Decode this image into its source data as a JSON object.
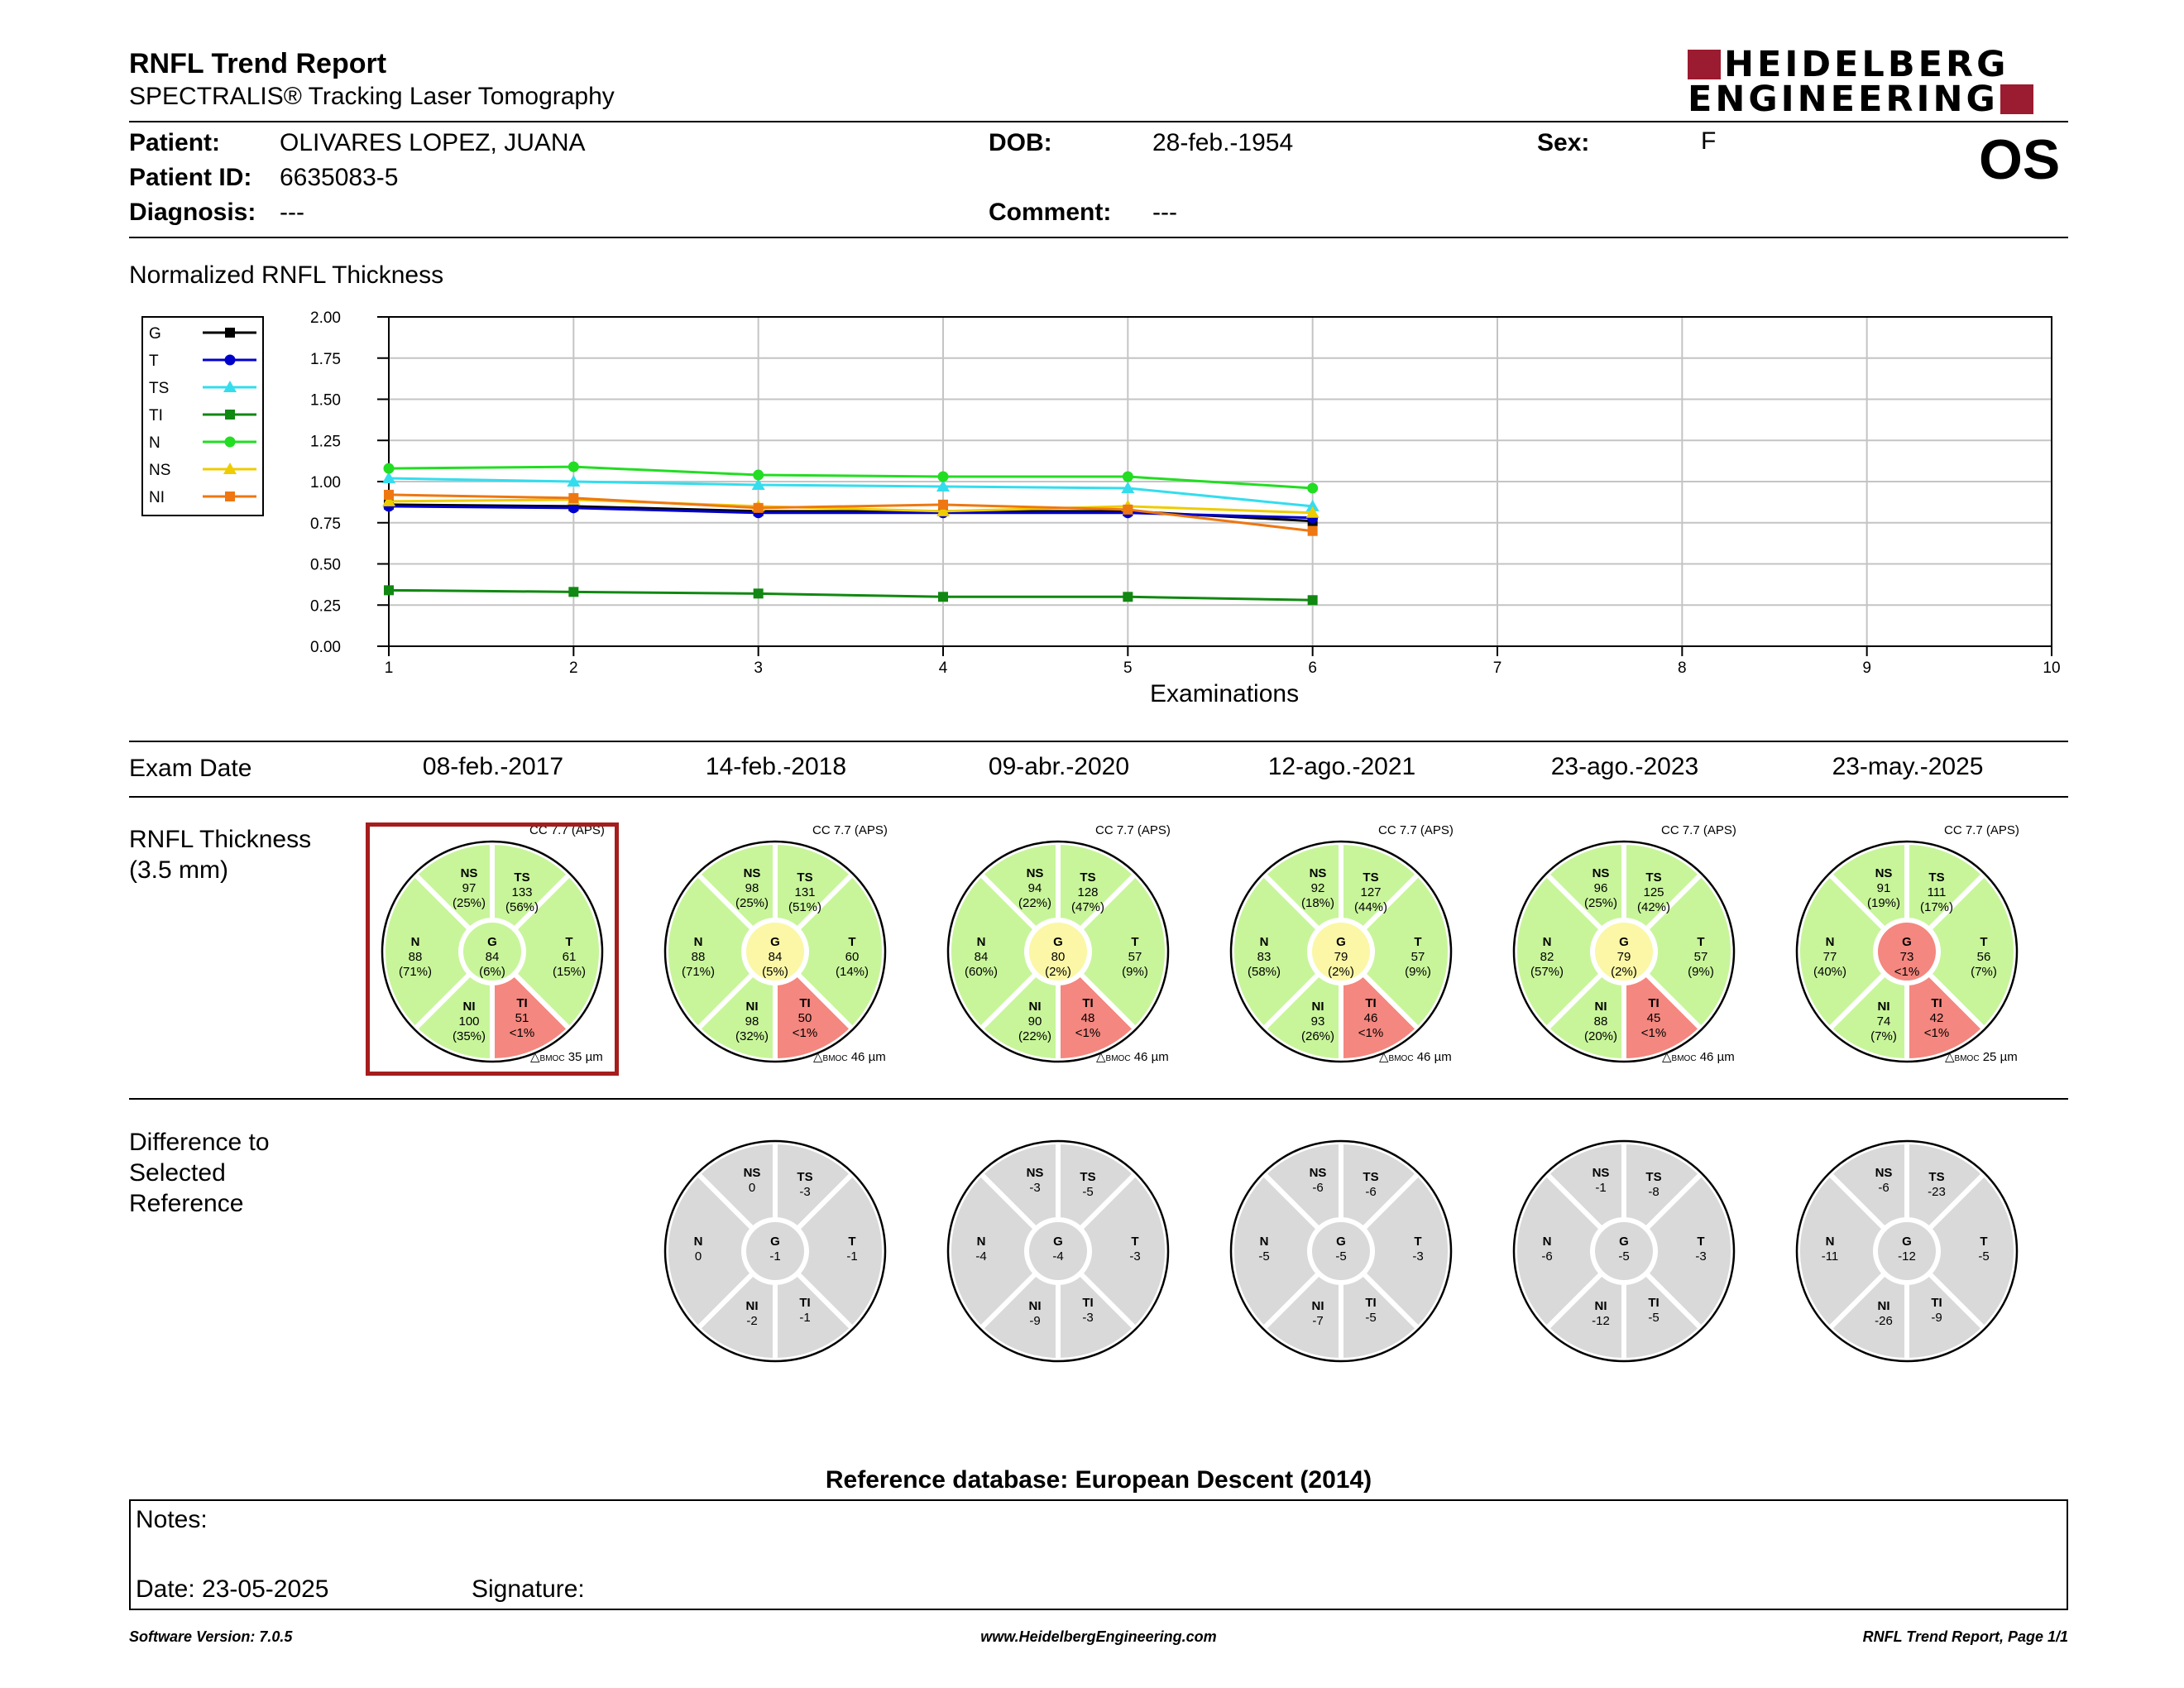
{
  "report": {
    "title": "RNFL Trend Report",
    "subtitle": "SPECTRALIS® Tracking Laser Tomography",
    "logo_line1": "HEIDELBERG",
    "logo_line2": "ENGINEERING",
    "eye": "OS"
  },
  "patient": {
    "name_label": "Patient:",
    "name": "OLIVARES LOPEZ, JUANA",
    "id_label": "Patient ID:",
    "id": "6635083-5",
    "diagnosis_label": "Diagnosis:",
    "diagnosis": "---",
    "dob_label": "DOB:",
    "dob": "28-feb.-1954",
    "comment_label": "Comment:",
    "comment": "---",
    "sex_label": "Sex:",
    "sex": "F"
  },
  "chart_data": {
    "type": "line",
    "title": "Normalized RNFL Thickness",
    "xlabel": "Examinations",
    "ylabel": "",
    "xlim": [
      1,
      10
    ],
    "ylim": [
      0,
      2
    ],
    "x_ticks": [
      "1",
      "2",
      "3",
      "4",
      "5",
      "6",
      "7",
      "8",
      "9",
      "10"
    ],
    "y_ticks": [
      "0.00",
      "0.25",
      "0.50",
      "0.75",
      "1.00",
      "1.25",
      "1.50",
      "1.75",
      "2.00"
    ],
    "grid": true,
    "legend_position": "top-left",
    "x": [
      1,
      2,
      3,
      4,
      5,
      6
    ],
    "series": [
      {
        "name": "G",
        "color": "#000000",
        "marker": "square",
        "values": [
          0.86,
          0.85,
          0.82,
          0.82,
          0.82,
          0.76
        ]
      },
      {
        "name": "T",
        "color": "#0000cc",
        "marker": "circle",
        "values": [
          0.85,
          0.84,
          0.81,
          0.81,
          0.81,
          0.78
        ]
      },
      {
        "name": "TS",
        "color": "#33ddee",
        "marker": "triangle",
        "values": [
          1.02,
          1.0,
          0.98,
          0.97,
          0.96,
          0.85
        ]
      },
      {
        "name": "TI",
        "color": "#118811",
        "marker": "square",
        "values": [
          0.34,
          0.33,
          0.32,
          0.3,
          0.3,
          0.28
        ]
      },
      {
        "name": "N",
        "color": "#22dd22",
        "marker": "circle",
        "values": [
          1.08,
          1.09,
          1.04,
          1.03,
          1.03,
          0.96
        ]
      },
      {
        "name": "NS",
        "color": "#eecc00",
        "marker": "triangle",
        "values": [
          0.88,
          0.89,
          0.85,
          0.82,
          0.85,
          0.81
        ]
      },
      {
        "name": "NI",
        "color": "#ee7711",
        "marker": "square",
        "values": [
          0.92,
          0.9,
          0.84,
          0.86,
          0.83,
          0.7
        ]
      }
    ]
  },
  "exams": {
    "label": "Exam Date",
    "dates": [
      "08-feb.-2017",
      "14-feb.-2018",
      "09-abr.-2020",
      "12-ago.-2021",
      "23-ago.-2023",
      "23-may.-2025"
    ]
  },
  "thickness": {
    "label_line1": "RNFL Thickness",
    "label_line2": "(3.5 mm)",
    "exams": [
      {
        "cc": "CC 7.7 (APS)",
        "bmo_label": "BMOC",
        "bmo": "35 µm",
        "selected": true,
        "NS": {
          "v": "97",
          "p": "(25%)",
          "c": "green"
        },
        "TS": {
          "v": "133",
          "p": "(56%)",
          "c": "green"
        },
        "N": {
          "v": "88",
          "p": "(71%)",
          "c": "green"
        },
        "G": {
          "v": "84",
          "p": "(6%)",
          "c": "green"
        },
        "T": {
          "v": "61",
          "p": "(15%)",
          "c": "green"
        },
        "NI": {
          "v": "100",
          "p": "(35%)",
          "c": "green"
        },
        "TI": {
          "v": "51",
          "p": "<1%",
          "c": "red"
        }
      },
      {
        "cc": "CC 7.7 (APS)",
        "bmo_label": "BMOC",
        "bmo": "46 µm",
        "selected": false,
        "NS": {
          "v": "98",
          "p": "(25%)",
          "c": "green"
        },
        "TS": {
          "v": "131",
          "p": "(51%)",
          "c": "green"
        },
        "N": {
          "v": "88",
          "p": "(71%)",
          "c": "green"
        },
        "G": {
          "v": "84",
          "p": "(5%)",
          "c": "yellow"
        },
        "T": {
          "v": "60",
          "p": "(14%)",
          "c": "green"
        },
        "NI": {
          "v": "98",
          "p": "(32%)",
          "c": "green"
        },
        "TI": {
          "v": "50",
          "p": "<1%",
          "c": "red"
        }
      },
      {
        "cc": "CC 7.7 (APS)",
        "bmo_label": "BMOC",
        "bmo": "46 µm",
        "selected": false,
        "NS": {
          "v": "94",
          "p": "(22%)",
          "c": "green"
        },
        "TS": {
          "v": "128",
          "p": "(47%)",
          "c": "green"
        },
        "N": {
          "v": "84",
          "p": "(60%)",
          "c": "green"
        },
        "G": {
          "v": "80",
          "p": "(2%)",
          "c": "yellow"
        },
        "T": {
          "v": "57",
          "p": "(9%)",
          "c": "green"
        },
        "NI": {
          "v": "90",
          "p": "(22%)",
          "c": "green"
        },
        "TI": {
          "v": "48",
          "p": "<1%",
          "c": "red"
        }
      },
      {
        "cc": "CC 7.7 (APS)",
        "bmo_label": "BMOC",
        "bmo": "46 µm",
        "selected": false,
        "NS": {
          "v": "92",
          "p": "(18%)",
          "c": "green"
        },
        "TS": {
          "v": "127",
          "p": "(44%)",
          "c": "green"
        },
        "N": {
          "v": "83",
          "p": "(58%)",
          "c": "green"
        },
        "G": {
          "v": "79",
          "p": "(2%)",
          "c": "yellow"
        },
        "T": {
          "v": "57",
          "p": "(9%)",
          "c": "green"
        },
        "NI": {
          "v": "93",
          "p": "(26%)",
          "c": "green"
        },
        "TI": {
          "v": "46",
          "p": "<1%",
          "c": "red"
        }
      },
      {
        "cc": "CC 7.7 (APS)",
        "bmo_label": "BMOC",
        "bmo": "46 µm",
        "selected": false,
        "NS": {
          "v": "96",
          "p": "(25%)",
          "c": "green"
        },
        "TS": {
          "v": "125",
          "p": "(42%)",
          "c": "green"
        },
        "N": {
          "v": "82",
          "p": "(57%)",
          "c": "green"
        },
        "G": {
          "v": "79",
          "p": "(2%)",
          "c": "yellow"
        },
        "T": {
          "v": "57",
          "p": "(9%)",
          "c": "green"
        },
        "NI": {
          "v": "88",
          "p": "(20%)",
          "c": "green"
        },
        "TI": {
          "v": "45",
          "p": "<1%",
          "c": "red"
        }
      },
      {
        "cc": "CC 7.7 (APS)",
        "bmo_label": "BMOC",
        "bmo": "25 µm",
        "selected": false,
        "NS": {
          "v": "91",
          "p": "(19%)",
          "c": "green"
        },
        "TS": {
          "v": "111",
          "p": "(17%)",
          "c": "green"
        },
        "N": {
          "v": "77",
          "p": "(40%)",
          "c": "green"
        },
        "G": {
          "v": "73",
          "p": "<1%",
          "c": "red"
        },
        "T": {
          "v": "56",
          "p": "(7%)",
          "c": "green"
        },
        "NI": {
          "v": "74",
          "p": "(7%)",
          "c": "green"
        },
        "TI": {
          "v": "42",
          "p": "<1%",
          "c": "red"
        }
      }
    ]
  },
  "difference": {
    "label_line1": "Difference to",
    "label_line2": "Selected",
    "label_line3": "Reference",
    "exams": [
      {
        "NS": "0",
        "TS": "-3",
        "N": "0",
        "G": "-1",
        "T": "-1",
        "NI": "-2",
        "TI": "-1"
      },
      {
        "NS": "-3",
        "TS": "-5",
        "N": "-4",
        "G": "-4",
        "T": "-3",
        "NI": "-9",
        "TI": "-3"
      },
      {
        "NS": "-6",
        "TS": "-6",
        "N": "-5",
        "G": "-5",
        "T": "-3",
        "NI": "-7",
        "TI": "-5"
      },
      {
        "NS": "-1",
        "TS": "-8",
        "N": "-6",
        "G": "-5",
        "T": "-3",
        "NI": "-12",
        "TI": "-5"
      },
      {
        "NS": "-6",
        "TS": "-23",
        "N": "-11",
        "G": "-12",
        "T": "-5",
        "NI": "-26",
        "TI": "-9"
      }
    ]
  },
  "reference_db": "Reference database: European Descent (2014)",
  "notes": {
    "notes_label": "Notes:",
    "date_label": "Date: 23-05-2025",
    "signature_label": "Signature:"
  },
  "footer": {
    "version": "Software Version: 7.0.5",
    "website": "www.HeidelbergEngineering.com",
    "page": "RNFL Trend Report, Page 1/1"
  },
  "colors": {
    "green": "#c8f59a",
    "yellow": "#fbf7a6",
    "red": "#f4877f",
    "gray": "#d9d9d9",
    "selected_border": "#a51d1d",
    "brand": "#9b1b30"
  }
}
